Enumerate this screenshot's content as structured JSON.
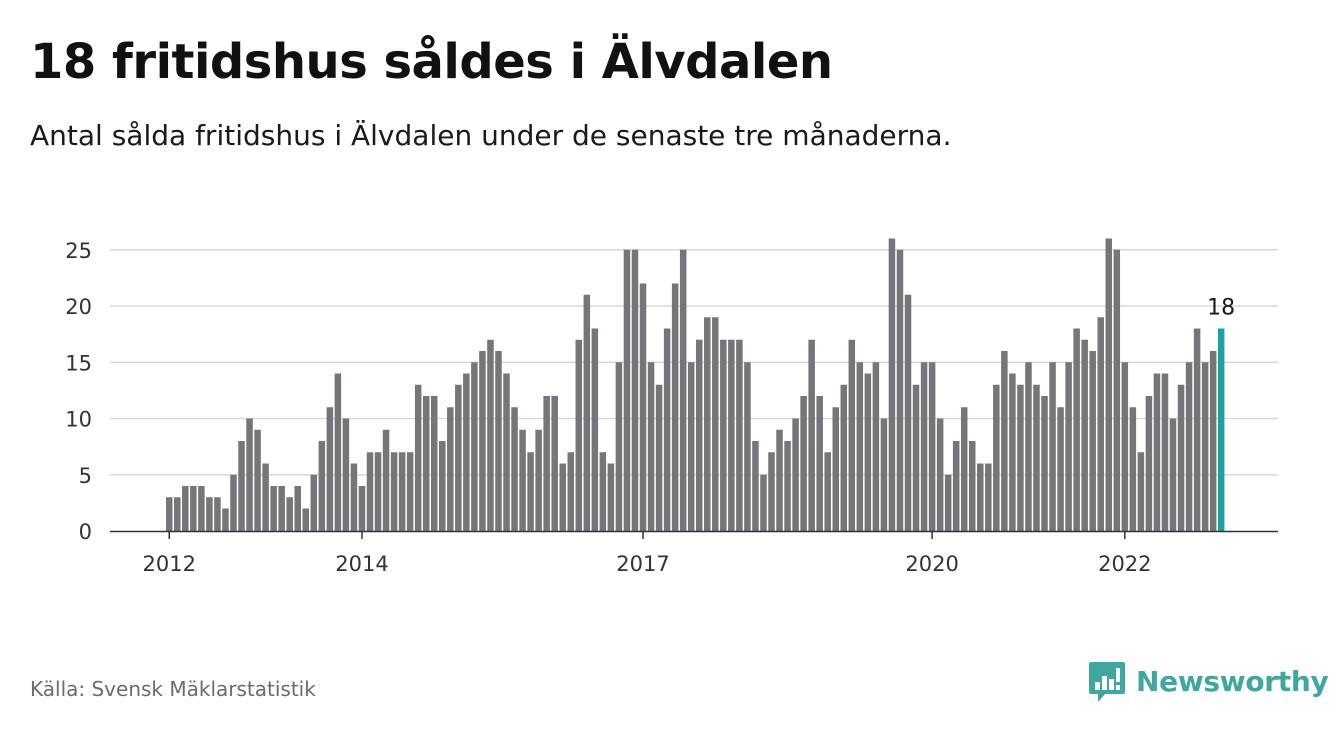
{
  "header": {
    "title": "18 fritidshus såldes i Älvdalen",
    "subtitle": "Antal sålda fritidshus i Älvdalen under de senaste tre månaderna."
  },
  "footer": {
    "source": "Källa: Svensk Mäklarstatistik",
    "brand": "Newsworthy"
  },
  "colors": {
    "bar": "#76757a",
    "highlight": "#1aa39a",
    "grid": "#d9d9d9",
    "axis": "#333333",
    "brand": "#3fa7a0"
  },
  "icons": {
    "brand_logo": "newsworthy-logo-icon"
  },
  "chart_data": {
    "type": "bar",
    "title": "",
    "xlabel": "",
    "ylabel": "",
    "ylim": [
      0,
      27
    ],
    "yticks": [
      0,
      5,
      10,
      15,
      20,
      25
    ],
    "grid": true,
    "legend": "none",
    "x_start_month": "2012-01",
    "x_ticks": [
      {
        "label": "2012",
        "month": "2012-01"
      },
      {
        "label": "2014",
        "month": "2014-01"
      },
      {
        "label": "2017",
        "month": "2016-12"
      },
      {
        "label": "2020",
        "month": "2019-12"
      },
      {
        "label": "2022",
        "month": "2021-12"
      }
    ],
    "values": [
      3,
      3,
      4,
      4,
      4,
      3,
      3,
      2,
      5,
      8,
      10,
      9,
      6,
      4,
      4,
      3,
      4,
      2,
      5,
      8,
      11,
      14,
      10,
      6,
      4,
      7,
      7,
      9,
      7,
      7,
      7,
      13,
      12,
      12,
      8,
      11,
      13,
      14,
      15,
      16,
      17,
      16,
      14,
      11,
      9,
      7,
      9,
      12,
      12,
      6,
      7,
      17,
      21,
      18,
      7,
      6,
      15,
      25,
      25,
      22,
      15,
      13,
      18,
      22,
      25,
      15,
      17,
      19,
      19,
      17,
      17,
      17,
      15,
      8,
      5,
      7,
      9,
      8,
      10,
      12,
      17,
      12,
      7,
      11,
      13,
      17,
      15,
      14,
      15,
      10,
      26,
      25,
      21,
      13,
      15,
      15,
      10,
      5,
      8,
      11,
      8,
      6,
      6,
      13,
      16,
      14,
      13,
      15,
      13,
      12,
      15,
      11,
      15,
      18,
      17,
      16,
      19,
      26,
      25,
      15,
      11,
      7,
      12,
      14,
      14,
      10,
      13,
      15,
      18,
      15,
      16,
      18
    ],
    "highlight_last": true,
    "data_label": "18"
  }
}
